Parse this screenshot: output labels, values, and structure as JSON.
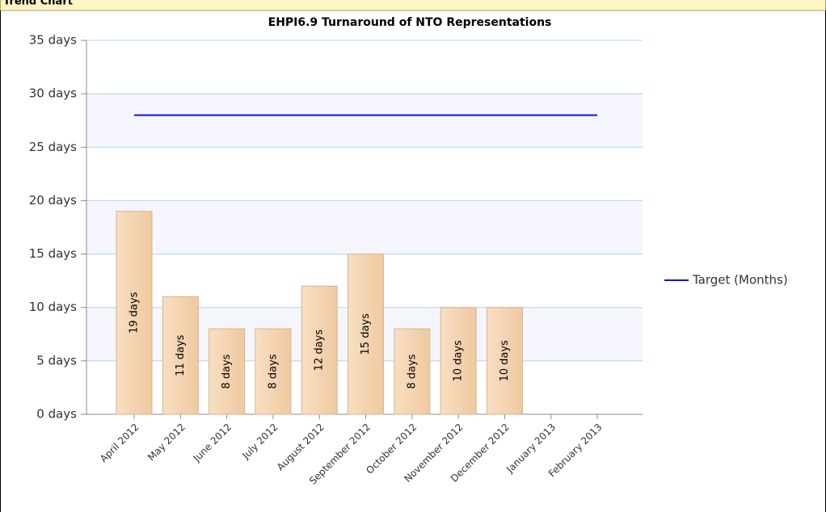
{
  "header": "Trend Chart",
  "chart_data": {
    "type": "bar",
    "title": "EHPI6.9 Turnaround of NTO Representations",
    "categories": [
      "April 2012",
      "May 2012",
      "June 2012",
      "July 2012",
      "August 2012",
      "September 2012",
      "October 2012",
      "November 2012",
      "December 2012",
      "January 2013",
      "February 2013"
    ],
    "series": [
      {
        "type": "bar",
        "color": "#f3d2ac",
        "values": [
          19,
          11,
          8,
          8,
          12,
          15,
          8,
          10,
          10,
          null,
          null
        ],
        "value_labels": [
          "19 days",
          "11 days",
          "8 days",
          "8 days",
          "12 days",
          "15 days",
          "8 days",
          "10 days",
          "10 days",
          null,
          null
        ]
      },
      {
        "type": "line",
        "name": "Target (Months)",
        "color": "#1010e0",
        "values": [
          28,
          28,
          28,
          28,
          28,
          28,
          28,
          28,
          28,
          28,
          28
        ]
      }
    ],
    "ylim": [
      0,
      35
    ],
    "yticks": [
      {
        "value": 0,
        "label": "0 days"
      },
      {
        "value": 5,
        "label": "5 days"
      },
      {
        "value": 10,
        "label": "10 days"
      },
      {
        "value": 15,
        "label": "15 days"
      },
      {
        "value": 20,
        "label": "20 days"
      },
      {
        "value": 25,
        "label": "25 days"
      },
      {
        "value": 30,
        "label": "30 days"
      },
      {
        "value": 35,
        "label": "35 days"
      }
    ],
    "grid": true,
    "legend": "right"
  }
}
